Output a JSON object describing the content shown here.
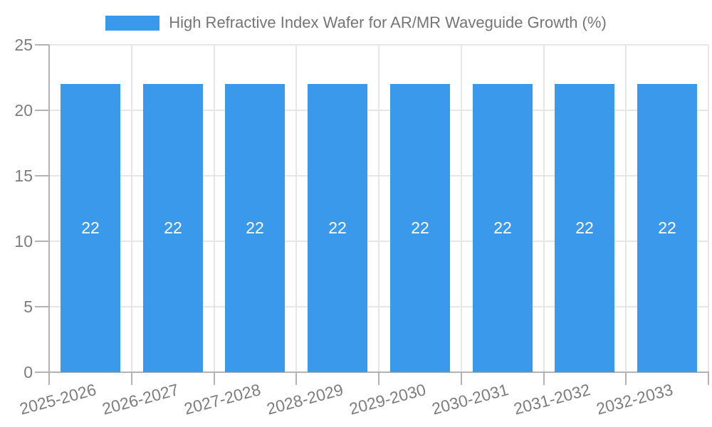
{
  "chart_data": {
    "type": "bar",
    "title": "High Refractive Index Wafer for AR/MR Waveguide Growth (%)",
    "legend_entries": [
      "High Refractive Index Wafer for AR/MR Waveguide Growth (%)"
    ],
    "legend_position": "top-center",
    "categories": [
      "2025-2026",
      "2026-2027",
      "2027-2028",
      "2028-2029",
      "2029-2030",
      "2030-2031",
      "2031-2032",
      "2032-2033"
    ],
    "series": [
      {
        "name": "High Refractive Index Wafer for AR/MR Waveguide Growth (%)",
        "values": [
          22,
          22,
          22,
          22,
          22,
          22,
          22,
          22
        ],
        "data_labels": [
          "22",
          "22",
          "22",
          "22",
          "22",
          "22",
          "22",
          "22"
        ]
      }
    ],
    "xlabel": "",
    "ylabel": "",
    "ylim": [
      0,
      25
    ],
    "yticks": [
      0,
      5,
      10,
      15,
      20,
      25
    ],
    "grid": true,
    "x_label_rotation_deg": -15,
    "colors": {
      "bar": "#3b99ec",
      "bar_label": "#ffffff",
      "grid_line": "#e6e6e6",
      "axis_line": "#b3b3b3",
      "tick_label": "#7d7d7d",
      "title_text": "#757575",
      "background": "#ffffff"
    }
  }
}
